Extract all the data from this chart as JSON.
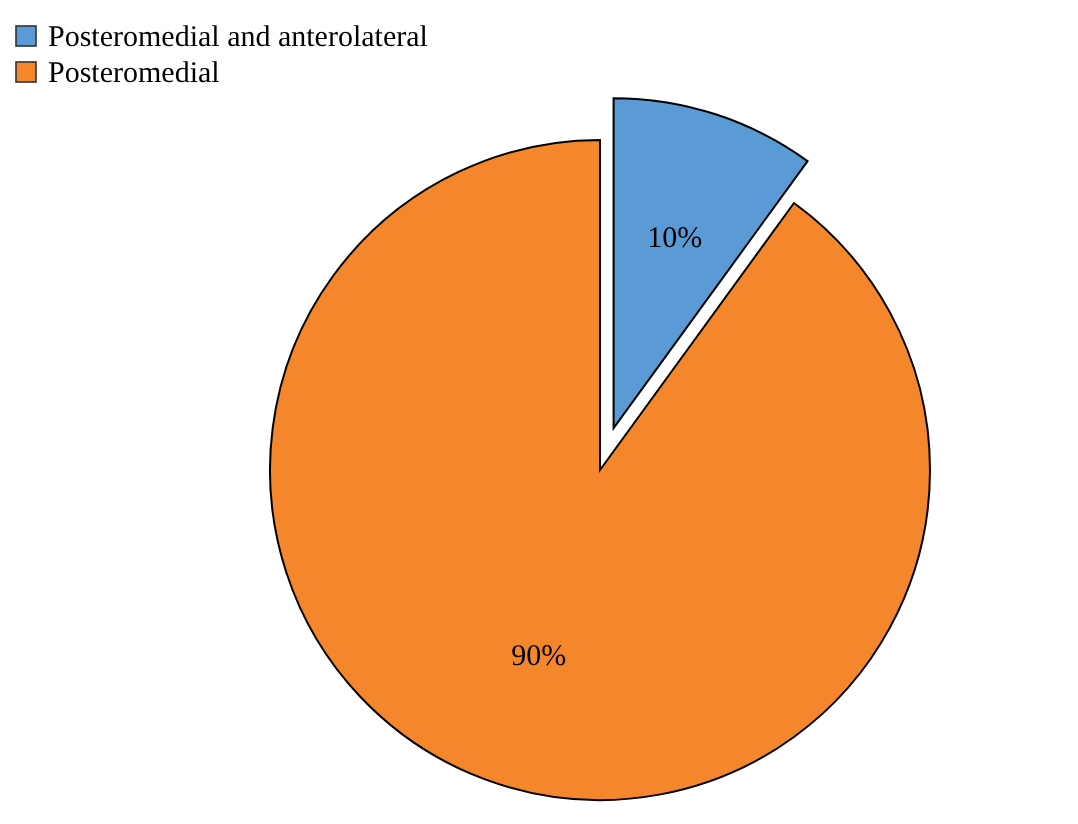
{
  "chart_data": {
    "type": "pie",
    "categories": [
      "Posteromedial and anterolateral",
      "Posteromedial"
    ],
    "values": [
      10,
      90
    ],
    "colors": [
      "#5b9bd5",
      "#f4862c"
    ],
    "value_labels": [
      "10%",
      "90%"
    ],
    "legend": "top left"
  }
}
